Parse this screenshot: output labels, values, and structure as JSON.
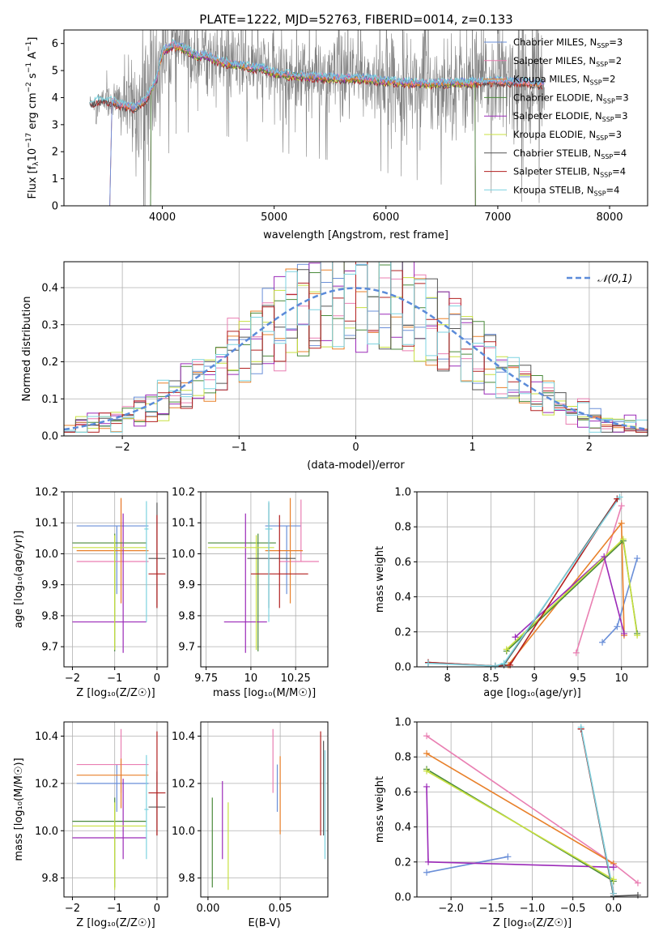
{
  "title": "PLATE=1222, MJD=52763, FIBERID=0014, z=0.133",
  "colors": {
    "Chabrier MILES": "#6a8fd8",
    "Salpeter MILES": "#e97fb2",
    "Kroupa MILES": "#e8802a",
    "Chabrier ELODIE": "#4a8a3a",
    "Salpeter ELODIE": "#9b2ab8",
    "Kroupa ELODIE": "#c8e040",
    "Chabrier STELIB": "#555555",
    "Salpeter STELIB": "#b22020",
    "Kroupa STELIB": "#7dd3e0",
    "data": "#808080",
    "normal": "#5b8bd9"
  },
  "chart_data": [
    {
      "id": "spectrum",
      "type": "line",
      "xlabel": "wavelength [Angstrom, rest frame]",
      "ylabel": "Flux [f_λ10^-17 erg cm^-2 s^-1 A^-1]",
      "xlim": [
        3120,
        8340
      ],
      "ylim": [
        0,
        6.5
      ],
      "xticks": [
        4000,
        5000,
        6000,
        7000,
        8000
      ],
      "yticks": [
        0,
        1,
        2,
        3,
        4,
        5,
        6
      ],
      "grid": false,
      "legend_position": "right",
      "legend": [
        {
          "label": "Chabrier MILES, N",
          "sub": "SSP",
          "tail": "=3",
          "series": "Chabrier MILES"
        },
        {
          "label": "Salpeter MILES, N",
          "sub": "SSP",
          "tail": "=2",
          "series": "Salpeter MILES"
        },
        {
          "label": "Kroupa MILES, N",
          "sub": "SSP",
          "tail": "=2",
          "series": "Kroupa MILES"
        },
        {
          "label": "Chabrier ELODIE, N",
          "sub": "SSP",
          "tail": "=3",
          "series": "Chabrier ELODIE"
        },
        {
          "label": "Salpeter ELODIE, N",
          "sub": "SSP",
          "tail": "=3",
          "series": "Salpeter ELODIE"
        },
        {
          "label": "Kroupa ELODIE, N",
          "sub": "SSP",
          "tail": "=3",
          "series": "Kroupa ELODIE"
        },
        {
          "label": "Chabrier STELIB, N",
          "sub": "SSP",
          "tail": "=4",
          "series": "Chabrier STELIB"
        },
        {
          "label": "Salpeter STELIB, N",
          "sub": "SSP",
          "tail": "=4",
          "series": "Salpeter STELIB"
        },
        {
          "label": "Kroupa STELIB, N",
          "sub": "SSP",
          "tail": "=4",
          "series": "Kroupa STELIB"
        }
      ],
      "model_continuum": {
        "x": [
          3350,
          3450,
          3550,
          3650,
          3750,
          3850,
          3950,
          4000,
          4100,
          4200,
          4300,
          4400,
          4500,
          4600,
          4700,
          4800,
          4900,
          5000,
          5200,
          5400,
          5600,
          5800,
          6000,
          6200,
          6400,
          6600,
          6800,
          7000,
          7200,
          7400
        ],
        "y": [
          3.8,
          3.9,
          3.85,
          3.7,
          3.6,
          3.9,
          4.7,
          5.7,
          5.95,
          5.8,
          5.55,
          5.55,
          5.35,
          5.25,
          5.2,
          5.1,
          5.1,
          4.9,
          4.8,
          4.75,
          4.7,
          4.7,
          4.6,
          4.55,
          4.5,
          4.55,
          4.55,
          4.6,
          4.55,
          4.5
        ]
      },
      "data_envelope": {
        "x": [
          3350,
          3500,
          3700,
          3900,
          4100,
          4400,
          5000,
          5600,
          6200,
          6800,
          7200,
          7400
        ],
        "noise": [
          0.3,
          0.5,
          1.5,
          2.8,
          1.5,
          1.2,
          1.3,
          1.4,
          1.6,
          1.8,
          2.0,
          2.0
        ]
      }
    },
    {
      "id": "residuals",
      "type": "histogram",
      "xlabel": "(data-model)/error",
      "ylabel": "Normed distribution",
      "xlim": [
        -2.5,
        2.5
      ],
      "ylim": [
        0,
        0.47
      ],
      "xticks": [
        -2,
        -1,
        0,
        1,
        2
      ],
      "yticks": [
        0.0,
        0.1,
        0.2,
        0.3,
        0.4
      ],
      "grid": true,
      "legend_position": "top-right",
      "legend": "𝒩(0,1)",
      "bin_width": 0.1,
      "bin_start": -2.5,
      "reference_curve": "normal(0,1)"
    },
    {
      "id": "age_vs_Z",
      "type": "errorbar",
      "xlabel": "Z [log₁₀(Z/Z☉)]",
      "ylabel": "age  [log₁₀(age/yr)]",
      "xlim": [
        -2.2,
        0.25
      ],
      "ylim": [
        9.635,
        10.2
      ],
      "xticks": [
        -2,
        -1,
        0
      ],
      "yticks": [
        9.7,
        9.8,
        9.9,
        10.0,
        10.1,
        10.2
      ],
      "grid": true,
      "points": [
        {
          "series": "Chabrier MILES",
          "x": -0.95,
          "xerr": [
            0.95,
            0.75
          ],
          "y": 10.09,
          "yerr": [
            0.22,
            0.0
          ]
        },
        {
          "series": "Salpeter MILES",
          "x": -0.85,
          "xerr": [
            1.05,
            0.65
          ],
          "y": 9.975,
          "yerr": [
            0.0,
            0.2
          ]
        },
        {
          "series": "Kroupa MILES",
          "x": -0.85,
          "xerr": [
            1.05,
            0.65
          ],
          "y": 10.01,
          "yerr": [
            0.17,
            0.17
          ]
        },
        {
          "series": "Chabrier ELODIE",
          "x": -1.0,
          "xerr": [
            1.0,
            0.75
          ],
          "y": 10.035,
          "yerr": [
            0.35,
            0.03
          ]
        },
        {
          "series": "Salpeter ELODIE",
          "x": -0.8,
          "xerr": [
            1.2,
            0.55
          ],
          "y": 9.78,
          "yerr": [
            0.1,
            0.35
          ]
        },
        {
          "series": "Kroupa ELODIE",
          "x": -1.0,
          "xerr": [
            1.0,
            0.75
          ],
          "y": 10.02,
          "yerr": [
            0.33,
            0.04
          ]
        },
        {
          "series": "Chabrier STELIB",
          "x": 0.0,
          "xerr": [
            0.2,
            0.2
          ],
          "y": 9.985,
          "yerr": [
            0.16,
            0.18
          ]
        },
        {
          "series": "Salpeter STELIB",
          "x": 0.0,
          "xerr": [
            0.2,
            0.2
          ],
          "y": 9.935,
          "yerr": [
            0.11,
            0.19
          ]
        },
        {
          "series": "Kroupa STELIB",
          "x": -0.25,
          "xerr": [
            0.05,
            0.05
          ],
          "y": 10.08,
          "yerr": [
            0.3,
            0.09
          ]
        }
      ]
    },
    {
      "id": "age_vs_mass",
      "type": "errorbar",
      "xlabel": "mass [log₁₀(M/M☉)]",
      "ylabel": "",
      "xlim": [
        9.72,
        10.43
      ],
      "ylim": [
        9.635,
        10.2
      ],
      "xticks": [
        9.75,
        10.0,
        10.25
      ],
      "yticks": [
        9.7,
        9.8,
        9.9,
        10.0,
        10.1,
        10.2
      ],
      "grid": true,
      "points": [
        {
          "series": "Chabrier MILES",
          "x": 10.2,
          "xerr": [
            0.12,
            0.08
          ],
          "y": 10.09,
          "yerr": [
            0.22,
            0.0
          ]
        },
        {
          "series": "Salpeter MILES",
          "x": 10.28,
          "xerr": [
            0.12,
            0.1
          ],
          "y": 9.975,
          "yerr": [
            0.0,
            0.2
          ]
        },
        {
          "series": "Kroupa MILES",
          "x": 10.22,
          "xerr": [
            0.14,
            0.07
          ],
          "y": 10.01,
          "yerr": [
            0.17,
            0.17
          ]
        },
        {
          "series": "Chabrier ELODIE",
          "x": 10.04,
          "xerr": [
            0.28,
            0.1
          ],
          "y": 10.035,
          "yerr": [
            0.35,
            0.03
          ]
        },
        {
          "series": "Salpeter ELODIE",
          "x": 9.97,
          "xerr": [
            0.12,
            0.12
          ],
          "y": 9.78,
          "yerr": [
            0.1,
            0.35
          ]
        },
        {
          "series": "Kroupa ELODIE",
          "x": 10.03,
          "xerr": [
            0.27,
            0.1
          ],
          "y": 10.02,
          "yerr": [
            0.33,
            0.04
          ]
        },
        {
          "series": "Chabrier STELIB",
          "x": 10.1,
          "xerr": [
            0.12,
            0.15
          ],
          "y": 9.985,
          "yerr": [
            0.16,
            0.18
          ]
        },
        {
          "series": "Salpeter STELIB",
          "x": 10.16,
          "xerr": [
            0.16,
            0.16
          ],
          "y": 9.935,
          "yerr": [
            0.11,
            0.19
          ]
        },
        {
          "series": "Kroupa STELIB",
          "x": 10.1,
          "xerr": [
            0.02,
            0.02
          ],
          "y": 10.08,
          "yerr": [
            0.3,
            0.09
          ]
        }
      ]
    },
    {
      "id": "weight_vs_age",
      "type": "line",
      "xlabel": "age  [log₁₀(age/yr)]",
      "ylabel": "mass weight",
      "xlim": [
        7.65,
        10.3
      ],
      "ylim": [
        0,
        1.0
      ],
      "xticks": [
        8.0,
        8.5,
        9.0,
        9.5,
        10.0
      ],
      "yticks": [
        0.0,
        0.2,
        0.4,
        0.6,
        0.8,
        1.0
      ],
      "grid": true,
      "series": [
        {
          "series": "Chabrier MILES",
          "x": [
            9.78,
            9.95,
            10.18
          ],
          "y": [
            0.14,
            0.23,
            0.62
          ]
        },
        {
          "series": "Salpeter MILES",
          "x": [
            9.48,
            10.0
          ],
          "y": [
            0.08,
            0.92
          ]
        },
        {
          "series": "Kroupa MILES",
          "x": [
            8.7,
            10.0,
            10.03
          ],
          "y": [
            0.01,
            0.82,
            0.18
          ]
        },
        {
          "series": "Chabrier ELODIE",
          "x": [
            8.68,
            10.02,
            10.18
          ],
          "y": [
            0.09,
            0.72,
            0.19
          ]
        },
        {
          "series": "Salpeter ELODIE",
          "x": [
            8.78,
            9.8,
            10.03
          ],
          "y": [
            0.17,
            0.63,
            0.19
          ]
        },
        {
          "series": "Kroupa ELODIE",
          "x": [
            8.68,
            10.02,
            10.18
          ],
          "y": [
            0.1,
            0.73,
            0.18
          ]
        },
        {
          "series": "Chabrier STELIB",
          "x": [
            7.78,
            8.55,
            8.65,
            9.95
          ],
          "y": [
            0.025,
            0.005,
            0.01,
            0.96
          ]
        },
        {
          "series": "Salpeter STELIB",
          "x": [
            7.78,
            8.55,
            8.72,
            9.95
          ],
          "y": [
            0.025,
            0.005,
            0.01,
            0.96
          ]
        },
        {
          "series": "Kroupa STELIB",
          "x": [
            7.78,
            8.55,
            8.65,
            9.98
          ],
          "y": [
            0.02,
            0.005,
            0.02,
            0.97
          ]
        }
      ]
    },
    {
      "id": "mass_vs_Z",
      "type": "errorbar",
      "xlabel": "Z [log₁₀(Z/Z☉)]",
      "ylabel": "mass [log₁₀(M/M☉)]",
      "xlim": [
        -2.2,
        0.25
      ],
      "ylim": [
        9.72,
        10.46
      ],
      "xticks": [
        -2,
        -1,
        0
      ],
      "yticks": [
        9.8,
        10.0,
        10.2,
        10.4
      ],
      "grid": true,
      "points": [
        {
          "series": "Chabrier MILES",
          "x": -0.95,
          "xerr": [
            0.95,
            0.75
          ],
          "y": 10.2,
          "yerr": [
            0.12,
            0.08
          ]
        },
        {
          "series": "Salpeter MILES",
          "x": -0.85,
          "xerr": [
            1.05,
            0.65
          ],
          "y": 10.28,
          "yerr": [
            0.12,
            0.15
          ]
        },
        {
          "series": "Kroupa MILES",
          "x": -0.85,
          "xerr": [
            1.05,
            0.65
          ],
          "y": 10.235,
          "yerr": [
            0.14,
            0.07
          ]
        },
        {
          "series": "Chabrier ELODIE",
          "x": -1.0,
          "xerr": [
            1.0,
            0.75
          ],
          "y": 10.04,
          "yerr": [
            0.28,
            0.1
          ]
        },
        {
          "series": "Salpeter ELODIE",
          "x": -0.8,
          "xerr": [
            1.2,
            0.55
          ],
          "y": 9.97,
          "yerr": [
            0.09,
            0.25
          ]
        },
        {
          "series": "Kroupa ELODIE",
          "x": -1.0,
          "xerr": [
            1.0,
            0.75
          ],
          "y": 10.02,
          "yerr": [
            0.27,
            0.1
          ]
        },
        {
          "series": "Chabrier STELIB",
          "x": 0.0,
          "xerr": [
            0.2,
            0.2
          ],
          "y": 10.1,
          "yerr": [
            0.12,
            0.15
          ]
        },
        {
          "series": "Salpeter STELIB",
          "x": 0.0,
          "xerr": [
            0.2,
            0.2
          ],
          "y": 10.16,
          "yerr": [
            0.18,
            0.26
          ]
        },
        {
          "series": "Kroupa STELIB",
          "x": -0.25,
          "xerr": [
            0.05,
            0.05
          ],
          "y": 10.09,
          "yerr": [
            0.21,
            0.23
          ]
        }
      ]
    },
    {
      "id": "mass_vs_ebv",
      "type": "errorbar",
      "xlabel": "E(B-V)",
      "ylabel": "",
      "xlim": [
        -0.005,
        0.083
      ],
      "ylim": [
        9.72,
        10.46
      ],
      "xticks": [
        0.0,
        0.05
      ],
      "xtick_labels": [
        "0.00",
        "0.05"
      ],
      "yticks": [
        9.8,
        10.0,
        10.2,
        10.4
      ],
      "grid": true,
      "points": [
        {
          "series": "Chabrier MILES",
          "x": 0.048,
          "xerr": [
            0,
            0
          ],
          "y": 10.2,
          "yerr": [
            0.12,
            0.08
          ]
        },
        {
          "series": "Salpeter MILES",
          "x": 0.045,
          "xerr": [
            0,
            0
          ],
          "y": 10.28,
          "yerr": [
            0.12,
            0.15
          ]
        },
        {
          "series": "Kroupa MILES",
          "x": 0.05,
          "xerr": [
            0,
            0
          ],
          "y": 10.235,
          "yerr": [
            0.25,
            0.08
          ]
        },
        {
          "series": "Chabrier ELODIE",
          "x": 0.003,
          "xerr": [
            0,
            0
          ],
          "y": 10.04,
          "yerr": [
            0.28,
            0.1
          ]
        },
        {
          "series": "Salpeter ELODIE",
          "x": 0.01,
          "xerr": [
            0,
            0
          ],
          "y": 10.05,
          "yerr": [
            0.17,
            0.16
          ]
        },
        {
          "series": "Kroupa ELODIE",
          "x": 0.014,
          "xerr": [
            0,
            0
          ],
          "y": 10.0,
          "yerr": [
            0.25,
            0.12
          ]
        },
        {
          "series": "Chabrier STELIB",
          "x": 0.08,
          "xerr": [
            0,
            0
          ],
          "y": 10.15,
          "yerr": [
            0.17,
            0.23
          ]
        },
        {
          "series": "Salpeter STELIB",
          "x": 0.078,
          "xerr": [
            0,
            0
          ],
          "y": 10.2,
          "yerr": [
            0.22,
            0.22
          ]
        },
        {
          "series": "Kroupa STELIB",
          "x": 0.081,
          "xerr": [
            0,
            0
          ],
          "y": 10.1,
          "yerr": [
            0.22,
            0.24
          ]
        }
      ]
    },
    {
      "id": "weight_vs_Z",
      "type": "line",
      "xlabel": "Z [log₁₀(Z/Z☉)]",
      "ylabel": "mass weight",
      "xlim": [
        -2.42,
        0.42
      ],
      "ylim": [
        0,
        1.0
      ],
      "xticks": [
        -2.0,
        -1.5,
        -1.0,
        -0.5,
        0.0
      ],
      "xtick_labels": [
        "−2.0",
        "−1.5",
        "−1.0",
        "−0.5",
        "0.0"
      ],
      "yticks": [
        0.0,
        0.2,
        0.4,
        0.6,
        0.8,
        1.0
      ],
      "grid": true,
      "series": [
        {
          "series": "Chabrier MILES",
          "x": [
            -2.3,
            -1.3
          ],
          "y": [
            0.14,
            0.23
          ]
        },
        {
          "series": "Salpeter MILES",
          "x": [
            -2.3,
            0.0,
            0.3
          ],
          "y": [
            0.92,
            0.19,
            0.08
          ]
        },
        {
          "series": "Kroupa MILES",
          "x": [
            -2.3,
            0.0
          ],
          "y": [
            0.82,
            0.19
          ]
        },
        {
          "series": "Chabrier ELODIE",
          "x": [
            -2.3,
            0.0
          ],
          "y": [
            0.73,
            0.09
          ]
        },
        {
          "series": "Salpeter ELODIE",
          "x": [
            -2.3,
            -2.28,
            0.0
          ],
          "y": [
            0.63,
            0.2,
            0.17
          ]
        },
        {
          "series": "Kroupa ELODIE",
          "x": [
            -2.3,
            0.0
          ],
          "y": [
            0.72,
            0.1
          ]
        },
        {
          "series": "Chabrier STELIB",
          "x": [
            -0.4,
            0.0,
            0.3
          ],
          "y": [
            0.96,
            0.005,
            0.01
          ]
        },
        {
          "series": "Salpeter STELIB",
          "x": [
            -0.4,
            0.0
          ],
          "y": [
            0.96,
            0.02
          ]
        },
        {
          "series": "Kroupa STELIB",
          "x": [
            -0.4,
            0.0
          ],
          "y": [
            0.97,
            0.02
          ]
        }
      ]
    }
  ]
}
